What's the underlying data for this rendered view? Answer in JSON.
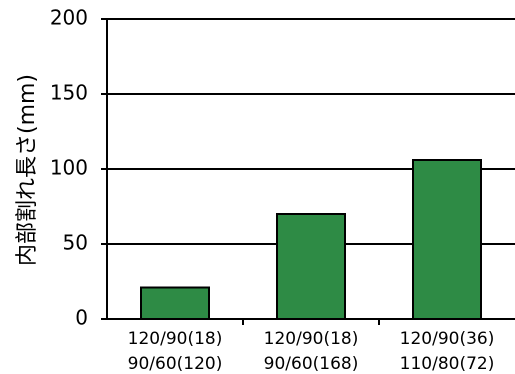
{
  "chart_data": {
    "type": "bar",
    "title": "",
    "xlabel": "",
    "ylabel": "内部割れ長さ(mm)",
    "ylim": [
      0,
      200
    ],
    "yticks": [
      0,
      50,
      100,
      150,
      200
    ],
    "grid": true,
    "categories": [
      {
        "line1": "120/90(18)",
        "line2": "90/60(120)"
      },
      {
        "line1": "120/90(18)",
        "line2": "90/60(168)"
      },
      {
        "line1": "120/90(36)",
        "line2": "110/80(72)"
      }
    ],
    "values": [
      21,
      70,
      106
    ],
    "bar_color": "#2e8b45",
    "bar_edge_color": "#000000"
  }
}
